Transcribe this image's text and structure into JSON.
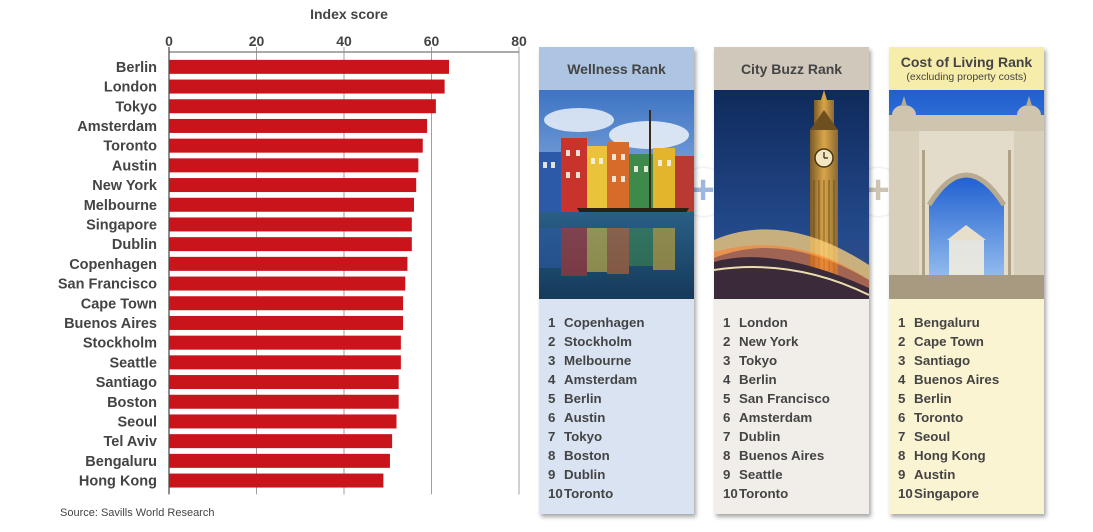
{
  "chart_data": {
    "type": "bar",
    "orientation": "horizontal",
    "title": "Index score",
    "xlim": [
      0,
      80
    ],
    "ticks": [
      0,
      20,
      40,
      60,
      80
    ],
    "grid": true,
    "bar_color": "#c8141a",
    "categories": [
      "Berlin",
      "London",
      "Tokyo",
      "Amsterdam",
      "Toronto",
      "Austin",
      "New York",
      "Melbourne",
      "Singapore",
      "Dublin",
      "Copenhagen",
      "San Francisco",
      "Cape Town",
      "Buenos Aires",
      "Stockholm",
      "Seattle",
      "Santiago",
      "Boston",
      "Seoul",
      "Tel Aviv",
      "Bengaluru",
      "Hong Kong"
    ],
    "values": [
      64,
      63,
      61,
      59,
      58,
      57,
      56.5,
      56,
      55.5,
      55.5,
      54.5,
      54,
      53.5,
      53.5,
      53,
      53,
      52.5,
      52.5,
      52,
      51,
      50.5,
      49
    ]
  },
  "source": "Source: Savills World Research",
  "panels": {
    "wellness": {
      "title": "Wellness Rank",
      "subtitle": "",
      "photo": "nyhavn-harbour-photo",
      "items": [
        {
          "rank": "1",
          "city": "Copenhagen"
        },
        {
          "rank": "2",
          "city": "Stockholm"
        },
        {
          "rank": "3",
          "city": "Melbourne"
        },
        {
          "rank": "4",
          "city": "Amsterdam"
        },
        {
          "rank": "5",
          "city": "Berlin"
        },
        {
          "rank": "6",
          "city": "Austin"
        },
        {
          "rank": "7",
          "city": "Tokyo"
        },
        {
          "rank": "8",
          "city": "Boston"
        },
        {
          "rank": "9",
          "city": "Dublin"
        },
        {
          "rank": "10",
          "city": "Toronto"
        }
      ]
    },
    "buzz": {
      "title": "City Buzz Rank",
      "subtitle": "",
      "photo": "big-ben-photo",
      "items": [
        {
          "rank": "1",
          "city": "London"
        },
        {
          "rank": "2",
          "city": "New York"
        },
        {
          "rank": "3",
          "city": "Tokyo"
        },
        {
          "rank": "4",
          "city": "Berlin"
        },
        {
          "rank": "5",
          "city": "San Francisco"
        },
        {
          "rank": "6",
          "city": "Amsterdam"
        },
        {
          "rank": "7",
          "city": "Dublin"
        },
        {
          "rank": "8",
          "city": "Buenos Aires"
        },
        {
          "rank": "9",
          "city": "Seattle"
        },
        {
          "rank": "10",
          "city": "Toronto"
        }
      ]
    },
    "cost": {
      "title": "Cost of Living Rank",
      "subtitle": "(excluding property costs)",
      "photo": "palace-gate-photo",
      "items": [
        {
          "rank": "1",
          "city": "Bengaluru"
        },
        {
          "rank": "2",
          "city": "Cape Town"
        },
        {
          "rank": "3",
          "city": "Santiago"
        },
        {
          "rank": "4",
          "city": "Buenos Aires"
        },
        {
          "rank": "5",
          "city": "Berlin"
        },
        {
          "rank": "6",
          "city": "Toronto"
        },
        {
          "rank": "7",
          "city": "Seoul"
        },
        {
          "rank": "8",
          "city": "Hong Kong"
        },
        {
          "rank": "9",
          "city": "Austin"
        },
        {
          "rank": "10",
          "city": "Singapore"
        }
      ]
    }
  },
  "connectors": [
    "+",
    "+"
  ]
}
